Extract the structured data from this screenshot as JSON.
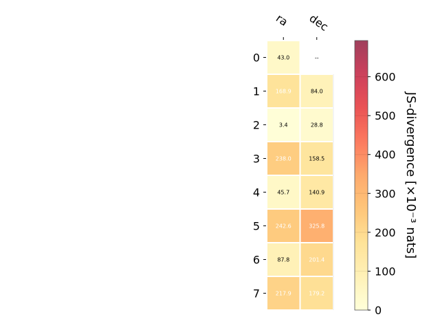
{
  "chart_data": {
    "type": "heatmap",
    "columns": [
      "ra",
      "dec"
    ],
    "rows": [
      "0",
      "1",
      "2",
      "3",
      "4",
      "5",
      "6",
      "7"
    ],
    "values": [
      [
        43.0,
        null
      ],
      [
        168.9,
        84.0
      ],
      [
        3.4,
        28.8
      ],
      [
        238.0,
        158.5
      ],
      [
        45.7,
        140.9
      ],
      [
        242.6,
        325.8
      ],
      [
        87.8,
        201.4
      ],
      [
        217.9,
        179.2
      ]
    ],
    "cell_labels": [
      [
        "43.0",
        "--"
      ],
      [
        "168.9",
        "84.0"
      ],
      [
        "3.4",
        "28.8"
      ],
      [
        "238.0",
        "158.5"
      ],
      [
        "45.7",
        "140.9"
      ],
      [
        "242.6",
        "325.8"
      ],
      [
        "87.8",
        "201.4"
      ],
      [
        "217.9",
        "179.2"
      ]
    ],
    "colorbar": {
      "label": "JS-divergence [×10⁻³ nats]",
      "ticks": [
        0,
        100,
        200,
        300,
        400,
        500,
        600
      ],
      "vmin": 0,
      "vmax": 693,
      "colormap": "YlOrRd"
    }
  }
}
